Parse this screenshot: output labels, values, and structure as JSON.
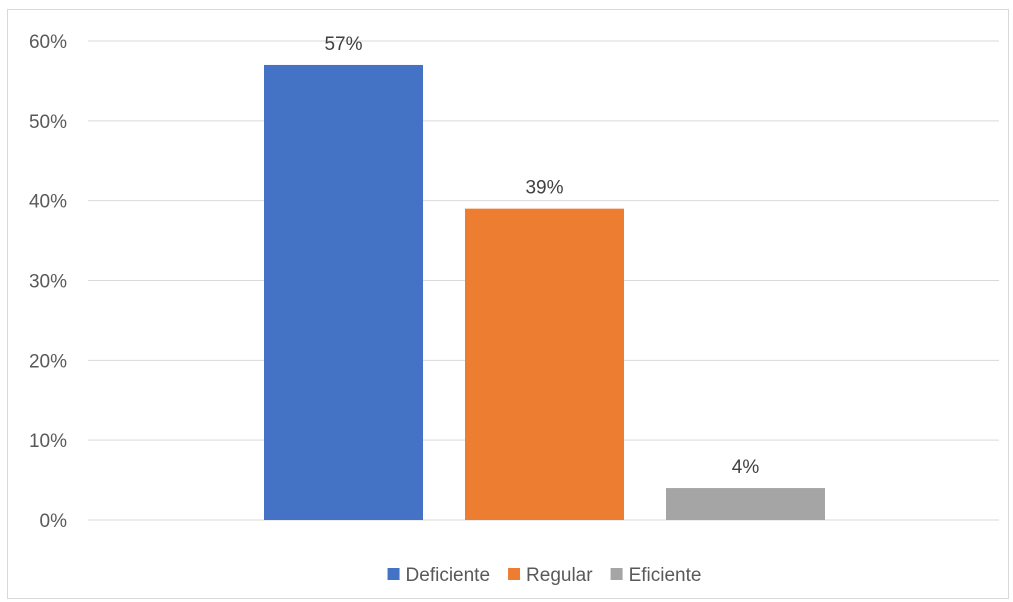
{
  "chart_data": {
    "type": "bar",
    "title": "",
    "xlabel": "",
    "ylabel": "",
    "categories": [
      ""
    ],
    "ylim": [
      0,
      60
    ],
    "yticks": [
      0,
      10,
      20,
      30,
      40,
      50,
      60
    ],
    "ytick_labels": [
      "0%",
      "10%",
      "20%",
      "30%",
      "40%",
      "50%",
      "60%"
    ],
    "grid": true,
    "legend_position": "bottom",
    "series": [
      {
        "name": "Deficiente",
        "values": [
          57
        ],
        "label": "57%",
        "color": "#4472c4"
      },
      {
        "name": "Regular",
        "values": [
          39
        ],
        "label": "39%",
        "color": "#ed7d31"
      },
      {
        "name": "Eficiente",
        "values": [
          4
        ],
        "label": "4%",
        "color": "#a5a5a5"
      }
    ]
  }
}
